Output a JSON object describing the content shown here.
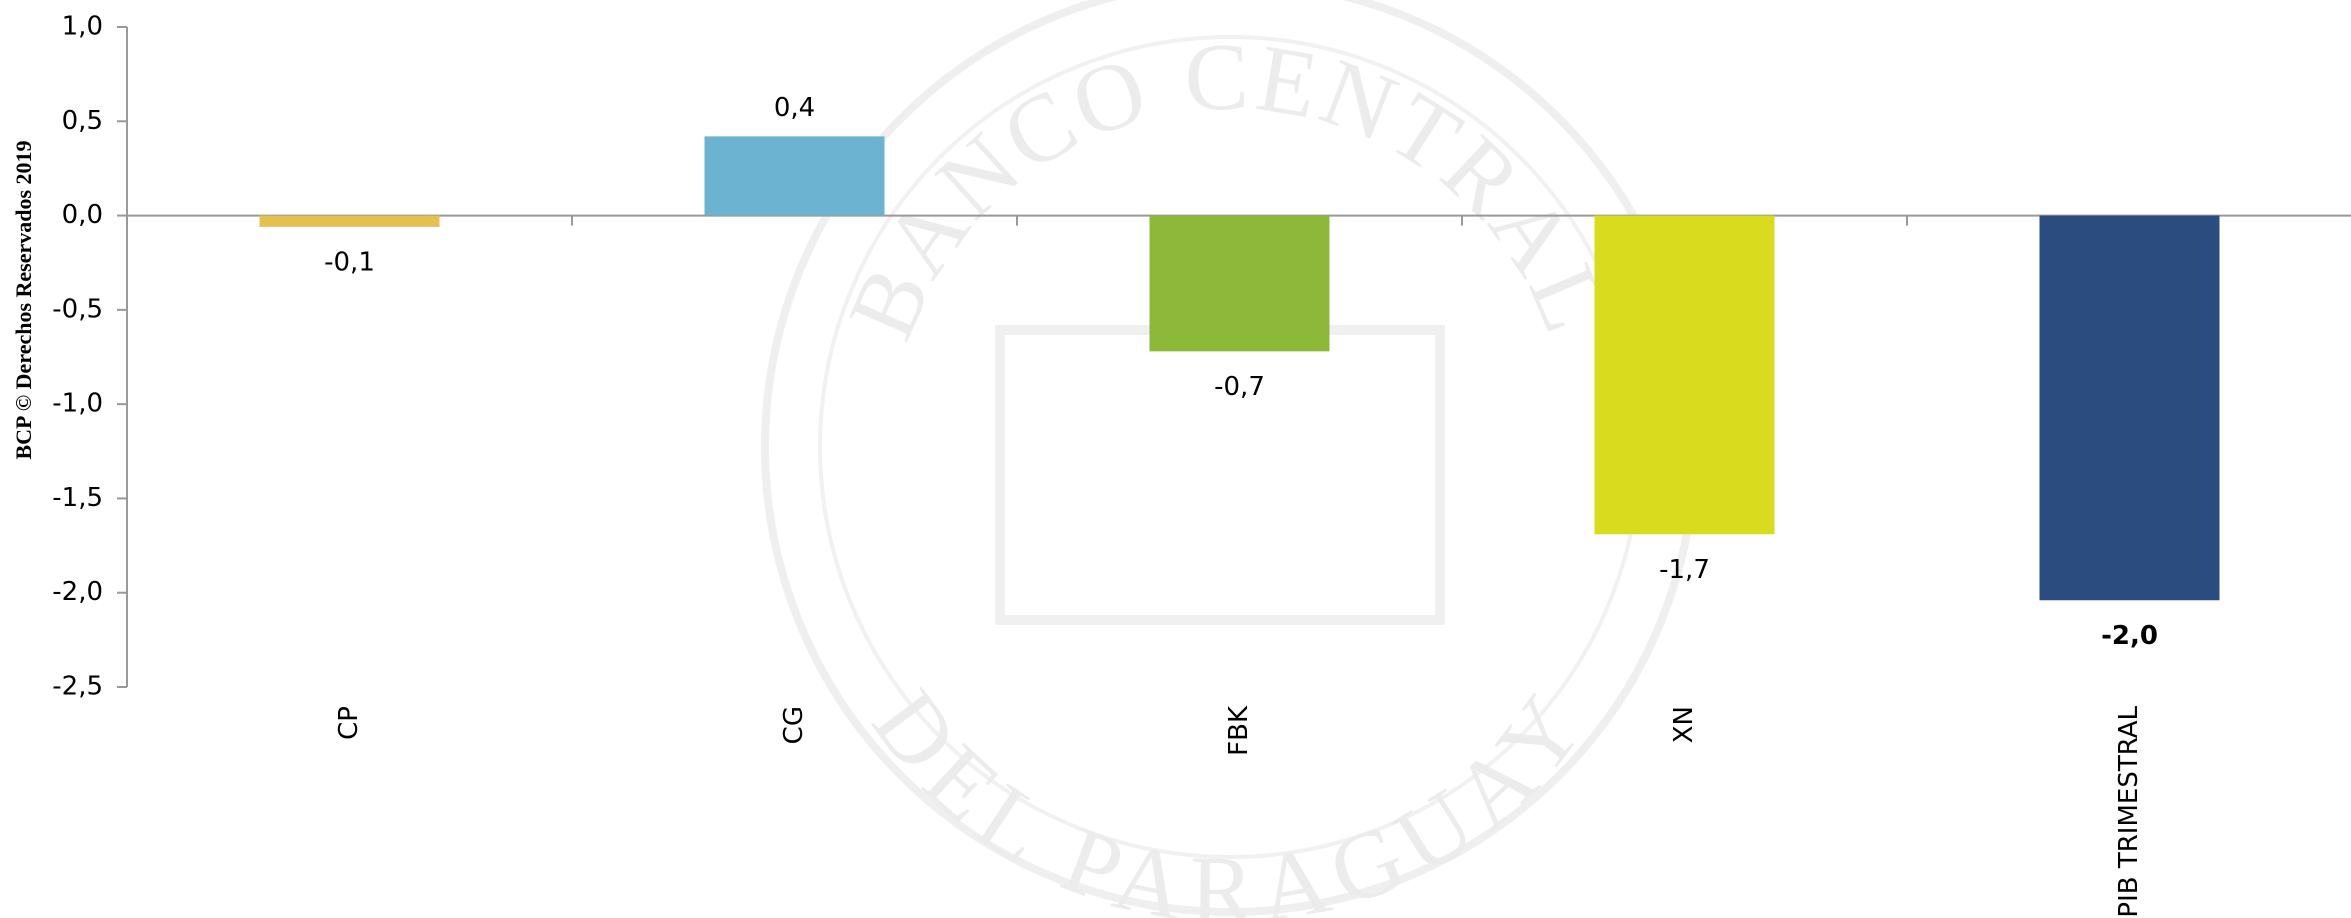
{
  "chart_data": {
    "type": "bar",
    "side_note": "BCP © Derechos Reservados 2019",
    "watermark": [
      "BANCO CENTRAL",
      "DEL PARAGUAY"
    ],
    "categories": [
      "CP",
      "CG",
      "FBK",
      "XN",
      "PIB TRIMESTRAL"
    ],
    "values": [
      -0.06,
      0.42,
      -0.72,
      -1.69,
      -2.04
    ],
    "value_labels": [
      "-0,1",
      "0,4",
      "-0,7",
      "-1,7",
      "-2,0"
    ],
    "colors": [
      "#e3c050",
      "#6bb3d0",
      "#8db83a",
      "#d9db1e",
      "#2b4c7e"
    ],
    "value_label_colors": [
      "#000000",
      "#000000",
      "#000000",
      "#000000",
      "#2b4c7e"
    ],
    "ylim": [
      -2.5,
      1.0
    ],
    "yticks": [
      {
        "value": -2.5,
        "label": "-2,5"
      },
      {
        "value": -2.0,
        "label": "-2,0"
      },
      {
        "value": -1.5,
        "label": "-1,5"
      },
      {
        "value": -1.0,
        "label": "-1,0"
      },
      {
        "value": -0.5,
        "label": "-0,5"
      },
      {
        "value": 0.0,
        "label": "0,0"
      },
      {
        "value": 0.5,
        "label": "0,5"
      },
      {
        "value": 1.0,
        "label": "1,0"
      }
    ],
    "grid": false
  }
}
